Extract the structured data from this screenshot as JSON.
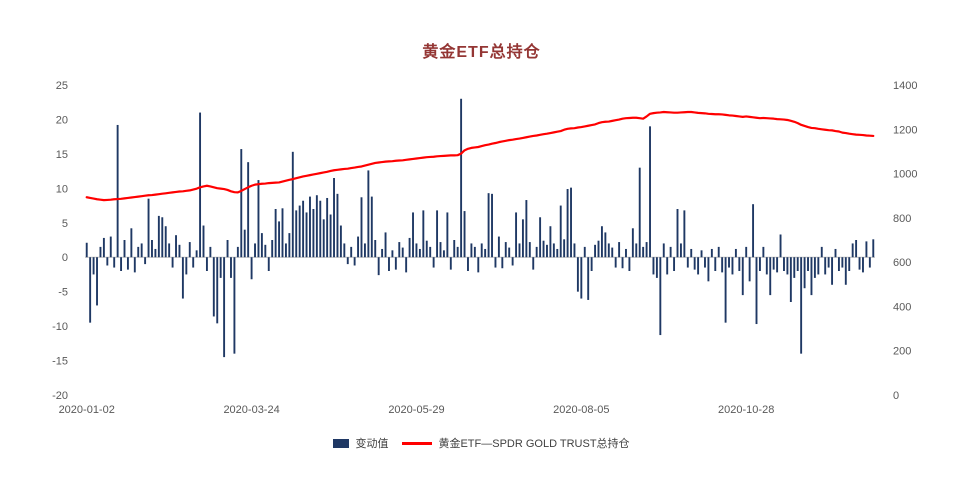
{
  "title": "黄金ETF总持仓",
  "colors": {
    "bar": "#1f3864",
    "line": "#ff0000",
    "title": "#943634",
    "axis_text": "#595959",
    "zero_line": "#bfbfbf"
  },
  "legend": [
    {
      "label": "变动值",
      "type": "bar"
    },
    {
      "label": "黄金ETF—SPDR GOLD TRUST总持仓",
      "type": "line"
    }
  ],
  "chart_data": {
    "type": "bar+line",
    "title": "黄金ETF总持仓",
    "x_tick_labels": [
      "2020-01-02",
      "2020-03-24",
      "2020-05-29",
      "2020-08-05",
      "2020-10-28"
    ],
    "x_tick_indices": [
      0,
      48,
      96,
      144,
      192
    ],
    "left_axis": {
      "min": -20,
      "max": 25,
      "ticks": [
        25,
        20,
        15,
        10,
        5,
        0,
        -5,
        -10,
        -15,
        -20
      ],
      "series": "变动值"
    },
    "right_axis": {
      "min": 0,
      "max": 1400,
      "ticks": [
        1400,
        1200,
        1000,
        800,
        600,
        400,
        200,
        0
      ],
      "series": "黄金ETF—SPDR GOLD TRUST总持仓"
    },
    "grid": false,
    "legend_position": "bottom",
    "series": [
      {
        "name": "变动值",
        "type": "bar",
        "axis": "left",
        "color": "#1f3864",
        "values": [
          2.1,
          -9.5,
          -2.5,
          -7.0,
          1.5,
          2.8,
          -1.2,
          3.0,
          -1.5,
          19.2,
          -2.0,
          2.5,
          -1.8,
          4.2,
          -2.2,
          1.5,
          2.0,
          -1.0,
          8.5,
          2.5,
          1.2,
          6.0,
          5.8,
          4.5,
          2.0,
          -1.5,
          3.2,
          1.8,
          -6.0,
          -2.5,
          2.2,
          -1.5,
          1.0,
          21.0,
          4.6,
          -2.0,
          1.5,
          -8.6,
          -9.6,
          -3.0,
          -14.5,
          2.5,
          -3.0,
          -14.0,
          1.5,
          15.7,
          4.0,
          13.8,
          -3.2,
          2.0,
          11.2,
          3.5,
          1.8,
          -2.0,
          2.5,
          7.0,
          5.2,
          7.1,
          2.0,
          3.5,
          15.3,
          6.8,
          7.5,
          8.2,
          6.5,
          8.8,
          7.0,
          9.0,
          8.2,
          5.5,
          8.6,
          6.2,
          11.5,
          9.2,
          4.6,
          2.0,
          -1.0,
          1.5,
          -1.2,
          3.0,
          8.7,
          2.0,
          12.6,
          8.8,
          2.5,
          -2.6,
          1.2,
          3.6,
          -2.0,
          1.0,
          -1.8,
          2.2,
          1.4,
          -2.2,
          2.8,
          6.5,
          2.0,
          1.2,
          6.8,
          2.4,
          1.5,
          -1.5,
          6.8,
          2.2,
          1.0,
          6.5,
          -1.8,
          2.5,
          1.5,
          23.0,
          6.7,
          -2.0,
          2.0,
          1.5,
          -2.2,
          2.0,
          1.2,
          9.3,
          9.2,
          -1.5,
          3.0,
          -1.6,
          2.2,
          1.4,
          -1.2,
          6.5,
          2.0,
          5.5,
          8.3,
          2.2,
          -1.8,
          1.5,
          5.8,
          2.4,
          1.8,
          4.5,
          2.0,
          1.2,
          7.5,
          2.6,
          9.9,
          10.1,
          2.0,
          -5.0,
          -6.0,
          1.5,
          -6.2,
          -2.0,
          1.8,
          2.4,
          4.5,
          3.6,
          2.0,
          1.4,
          -1.5,
          2.2,
          -1.6,
          1.2,
          -2.0,
          4.2,
          2.0,
          13.0,
          1.5,
          2.2,
          19.0,
          -2.5,
          -3.0,
          -11.3,
          2.0,
          -2.5,
          1.5,
          -2.0,
          7.0,
          2.0,
          6.8,
          -1.5,
          1.2,
          -1.8,
          -2.5,
          1.0,
          -1.5,
          -3.5,
          1.2,
          -2.0,
          1.5,
          -2.2,
          -9.5,
          -1.5,
          -2.5,
          1.2,
          -2.0,
          -5.5,
          1.5,
          -3.5,
          7.7,
          -9.7,
          -2.0,
          1.5,
          -2.5,
          -5.5,
          -1.8,
          -2.2,
          3.3,
          -2.0,
          -2.5,
          -6.5,
          -3.0,
          -2.0,
          -14.0,
          -4.5,
          -2.0,
          -5.5,
          -3.0,
          -2.5,
          1.5,
          -2.5,
          -1.5,
          -4.0,
          1.2,
          -2.0,
          -1.5,
          -4.0,
          -2.0,
          2.0,
          2.5,
          -1.8,
          -2.2,
          2.3,
          -1.5,
          2.6
        ]
      },
      {
        "name": "黄金ETF—SPDR GOLD TRUST总持仓",
        "type": "line",
        "axis": "right",
        "color": "#ff0000",
        "values": [
          893,
          890,
          887,
          884,
          882,
          880,
          881,
          882,
          884,
          885,
          886,
          888,
          890,
          892,
          894,
          896,
          898,
          900,
          902,
          903,
          905,
          907,
          909,
          911,
          913,
          915,
          917,
          919,
          920,
          922,
          924,
          928,
          932,
          938,
          942,
          945,
          942,
          938,
          934,
          932,
          930,
          926,
          920,
          916,
          915,
          922,
          930,
          938,
          945,
          950,
          952,
          954,
          955,
          957,
          958,
          959,
          960,
          964,
          968,
          972,
          975,
          979,
          983,
          987,
          990,
          993,
          996,
          999,
          1002,
          1005,
          1008,
          1012,
          1015,
          1017,
          1019,
          1021,
          1022,
          1025,
          1027,
          1030,
          1032,
          1036,
          1040,
          1044,
          1048,
          1050,
          1052,
          1054,
          1055,
          1056,
          1058,
          1059,
          1060,
          1062,
          1064,
          1066,
          1068,
          1070,
          1072,
          1074,
          1075,
          1076,
          1078,
          1079,
          1080,
          1081,
          1082,
          1082,
          1083,
          1090,
          1105,
          1112,
          1116,
          1118,
          1120,
          1124,
          1128,
          1131,
          1135,
          1138,
          1142,
          1145,
          1148,
          1151,
          1153,
          1156,
          1158,
          1161,
          1164,
          1167,
          1170,
          1172,
          1175,
          1178,
          1180,
          1183,
          1186,
          1189,
          1192,
          1198,
          1202,
          1204,
          1205,
          1208,
          1210,
          1213,
          1216,
          1219,
          1222,
          1228,
          1232,
          1234,
          1235,
          1238,
          1241,
          1244,
          1248,
          1250,
          1251,
          1252,
          1252,
          1250,
          1248,
          1258,
          1270,
          1273,
          1275,
          1276,
          1278,
          1277,
          1276,
          1275,
          1275,
          1276,
          1277,
          1278,
          1278,
          1276,
          1274,
          1273,
          1272,
          1270,
          1269,
          1268,
          1268,
          1267,
          1265,
          1263,
          1262,
          1260,
          1258,
          1256,
          1258,
          1256,
          1254,
          1252,
          1250,
          1251,
          1250,
          1249,
          1248,
          1246,
          1245,
          1244,
          1242,
          1238,
          1234,
          1228,
          1220,
          1215,
          1210,
          1206,
          1205,
          1202,
          1200,
          1198,
          1196,
          1195,
          1192,
          1190,
          1185,
          1183,
          1180,
          1178,
          1176,
          1175,
          1174,
          1172,
          1171,
          1170
        ]
      }
    ]
  }
}
